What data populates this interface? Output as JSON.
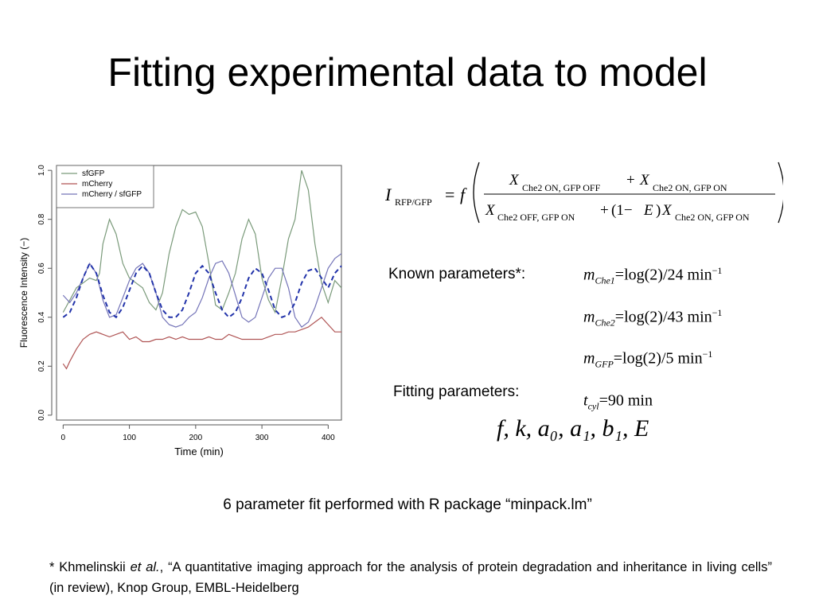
{
  "slide": {
    "title": "Fitting experimental data to model",
    "equation": {
      "lhs_symbol": "I",
      "lhs_subscript": "RFP/GFP",
      "equals": "=",
      "func": "f",
      "num_term1_var": "X",
      "num_term1_sub": "Che2 ON, GFP OFF",
      "num_plus": "+",
      "num_term2_var": "X",
      "num_term2_sub": "Che2 ON, GFP ON",
      "den_term1_var": "X",
      "den_term1_sub": "Che2 OFF, GFP ON",
      "den_plus": "+",
      "den_factor": "(1−",
      "den_E": "E",
      "den_close": ")",
      "den_term2_var": "X",
      "den_term2_sub": "Che2 ON, GFP ON"
    },
    "known_label": "Known parameters*:",
    "known_params": [
      {
        "var": "m",
        "sub": "Che1",
        "rest": "=log(2)/24  min",
        "sup": "−1"
      },
      {
        "var": "m",
        "sub": "Che2",
        "rest": "=log(2)/43  min",
        "sup": "−1"
      },
      {
        "var": "m",
        "sub": "GFP",
        "rest": "=log(2)/5  min",
        "sup": "−1"
      },
      {
        "var": "t",
        "sub": "cyl",
        "rest": "=90  min",
        "sup": ""
      }
    ],
    "fitting_label": "Fitting parameters:",
    "fitting_params": "f, k, a₀, a₁, b₁, E",
    "caption": "6 parameter fit performed with R package “minpack.lm”",
    "footnote_prefix": "* Khmelinskii ",
    "footnote_italic": "et al.",
    "footnote_rest": ", “A quantitative imaging approach for the analysis of protein degradation and inheritance in living cells” (in review), Knop Group, EMBL-Heidelberg"
  },
  "chart_data": {
    "type": "line",
    "xlabel": "Time (min)",
    "ylabel": "Fluorescence Intensity (−)",
    "xlim": [
      -10,
      420
    ],
    "ylim": [
      -0.02,
      1.02
    ],
    "xticks": [
      0,
      100,
      200,
      300,
      400
    ],
    "xtick_labels": [
      "0",
      "100",
      "200",
      "300",
      "400"
    ],
    "yticks": [
      0.0,
      0.2,
      0.4,
      0.6,
      0.8,
      1.0
    ],
    "ytick_labels": [
      "0.0",
      "0.2",
      "0.4",
      "0.6",
      "0.8",
      "1.0"
    ],
    "legend_position": "top-left",
    "series": [
      {
        "name": "sfGFP",
        "color": "#7a9a7a",
        "style": "solid",
        "x": [
          0,
          10,
          20,
          30,
          40,
          50,
          55,
          60,
          70,
          80,
          90,
          100,
          110,
          120,
          130,
          140,
          150,
          160,
          170,
          180,
          190,
          200,
          210,
          220,
          230,
          240,
          250,
          260,
          270,
          280,
          290,
          300,
          310,
          320,
          330,
          340,
          350,
          360,
          370,
          380,
          390,
          400,
          410,
          420
        ],
        "y": [
          0.42,
          0.47,
          0.52,
          0.54,
          0.56,
          0.55,
          0.58,
          0.7,
          0.8,
          0.74,
          0.62,
          0.56,
          0.54,
          0.52,
          0.46,
          0.43,
          0.5,
          0.66,
          0.77,
          0.84,
          0.82,
          0.83,
          0.77,
          0.62,
          0.45,
          0.43,
          0.5,
          0.58,
          0.72,
          0.8,
          0.74,
          0.56,
          0.47,
          0.42,
          0.56,
          0.72,
          0.8,
          1.0,
          0.92,
          0.7,
          0.54,
          0.46,
          0.55,
          0.52
        ]
      },
      {
        "name": "mCherry",
        "color": "#b05555",
        "style": "solid",
        "x": [
          0,
          5,
          10,
          20,
          30,
          40,
          50,
          60,
          70,
          80,
          90,
          100,
          110,
          120,
          130,
          140,
          150,
          160,
          170,
          180,
          190,
          200,
          210,
          220,
          230,
          240,
          250,
          260,
          270,
          280,
          290,
          300,
          310,
          320,
          330,
          340,
          350,
          360,
          370,
          380,
          390,
          400,
          410,
          420
        ],
        "y": [
          0.21,
          0.19,
          0.22,
          0.27,
          0.31,
          0.33,
          0.34,
          0.33,
          0.32,
          0.33,
          0.34,
          0.31,
          0.32,
          0.3,
          0.3,
          0.31,
          0.31,
          0.32,
          0.31,
          0.32,
          0.31,
          0.31,
          0.31,
          0.32,
          0.31,
          0.31,
          0.33,
          0.32,
          0.31,
          0.31,
          0.31,
          0.31,
          0.32,
          0.33,
          0.33,
          0.34,
          0.34,
          0.35,
          0.36,
          0.38,
          0.4,
          0.37,
          0.34,
          0.34
        ]
      },
      {
        "name": "mCherry / sfGFP",
        "color": "#7474b8",
        "style": "solid",
        "x": [
          0,
          10,
          20,
          30,
          40,
          50,
          60,
          70,
          80,
          90,
          100,
          110,
          120,
          130,
          140,
          150,
          160,
          170,
          180,
          190,
          200,
          210,
          220,
          230,
          240,
          250,
          260,
          270,
          280,
          290,
          300,
          310,
          320,
          330,
          340,
          350,
          360,
          370,
          380,
          390,
          400,
          410,
          420
        ],
        "y": [
          0.49,
          0.46,
          0.5,
          0.56,
          0.62,
          0.58,
          0.47,
          0.4,
          0.41,
          0.48,
          0.55,
          0.6,
          0.62,
          0.58,
          0.5,
          0.4,
          0.37,
          0.36,
          0.37,
          0.4,
          0.42,
          0.48,
          0.56,
          0.62,
          0.63,
          0.58,
          0.49,
          0.4,
          0.38,
          0.4,
          0.48,
          0.56,
          0.6,
          0.6,
          0.52,
          0.4,
          0.36,
          0.38,
          0.44,
          0.52,
          0.6,
          0.64,
          0.66
        ]
      },
      {
        "name": "",
        "color": "#2233aa",
        "style": "dashed",
        "x": [
          0,
          10,
          20,
          30,
          40,
          50,
          60,
          70,
          80,
          90,
          100,
          110,
          120,
          130,
          140,
          150,
          160,
          170,
          180,
          190,
          200,
          210,
          220,
          230,
          240,
          250,
          260,
          270,
          280,
          290,
          300,
          310,
          320,
          330,
          340,
          350,
          360,
          370,
          380,
          390,
          400,
          410,
          420
        ],
        "y": [
          0.4,
          0.42,
          0.48,
          0.56,
          0.62,
          0.58,
          0.49,
          0.42,
          0.4,
          0.44,
          0.51,
          0.58,
          0.61,
          0.58,
          0.5,
          0.43,
          0.4,
          0.4,
          0.43,
          0.5,
          0.58,
          0.61,
          0.58,
          0.5,
          0.43,
          0.4,
          0.42,
          0.48,
          0.56,
          0.6,
          0.58,
          0.51,
          0.43,
          0.4,
          0.41,
          0.46,
          0.54,
          0.59,
          0.6,
          0.56,
          0.52,
          0.58,
          0.61
        ]
      }
    ]
  }
}
